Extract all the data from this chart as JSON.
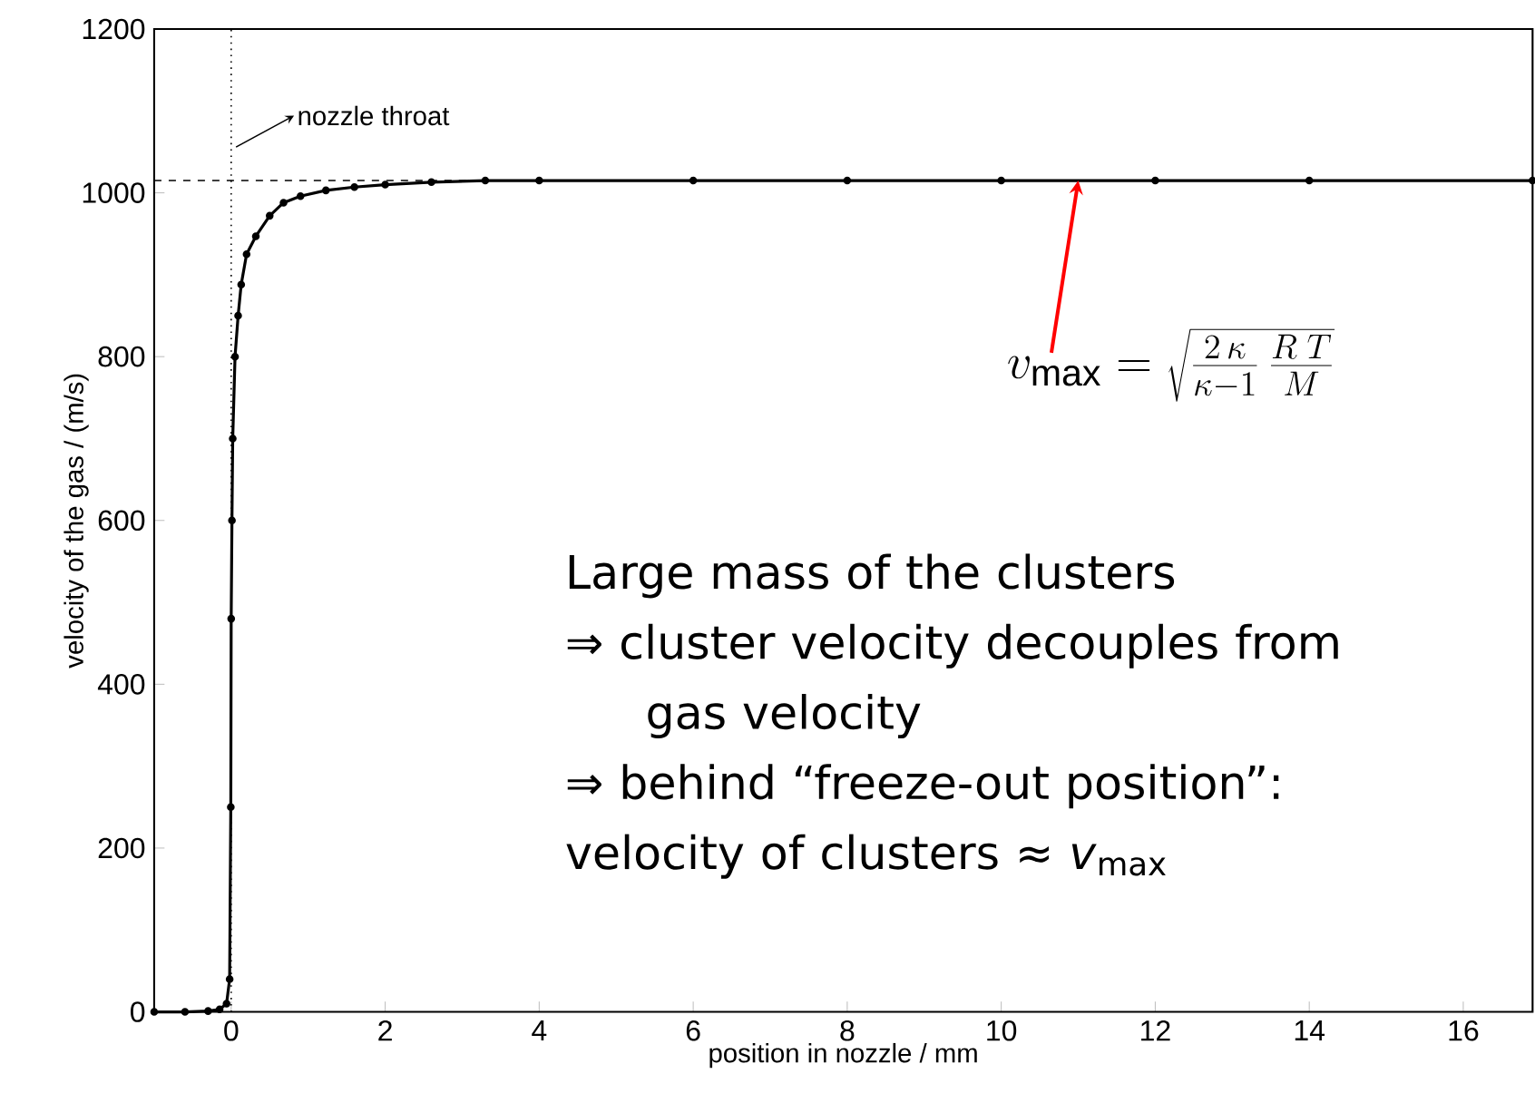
{
  "chart_data": {
    "type": "line",
    "xlabel": "position in nozzle / mm",
    "ylabel": "velocity of the gas / (m/s)",
    "x": [
      -1,
      -0.6,
      -0.3,
      -0.15,
      -0.06,
      -0.02,
      -0.005,
      0,
      0.01,
      0.02,
      0.05,
      0.09,
      0.13,
      0.2,
      0.32,
      0.5,
      0.68,
      0.9,
      1.23,
      1.6,
      2,
      2.6,
      3.3,
      4,
      6,
      8,
      10,
      12,
      14,
      16.9
    ],
    "series": [
      {
        "color": "#000000",
        "values": [
          0,
          0,
          1,
          3,
          10,
          40,
          250,
          480,
          600,
          700,
          800,
          850,
          888,
          925,
          947,
          972,
          988,
          996,
          1003,
          1007,
          1010,
          1013,
          1015,
          1015,
          1015,
          1015,
          1015,
          1015,
          1015,
          1015
        ]
      }
    ],
    "marker": "circle",
    "line_style": "solid",
    "xlim": [
      -1,
      16.9
    ],
    "ylim": [
      0,
      1200
    ],
    "xticks": [
      0,
      2,
      4,
      6,
      8,
      10,
      12,
      14,
      16
    ],
    "yticks": [
      0,
      200,
      400,
      600,
      800,
      1000,
      1200
    ],
    "ref_lines": [
      {
        "axis": "x",
        "value": 0,
        "line_style": "dotted",
        "color": "#000000"
      },
      {
        "axis": "y",
        "value": 1015,
        "line_style": "dashed",
        "color": "#000000"
      }
    ],
    "annotations": [
      {
        "text": "nozzle throat",
        "x": 0,
        "y": 1050
      },
      {
        "text": "v_{\\mathrm{max}} = \\sqrt{\\frac{2\\,\\kappa}{\\kappa-1}\\,\\frac{R\\;T}{M}}",
        "x": 11,
        "y": 1015
      },
      "Large mass of the clusters",
      "⇒ cluster velocity decouples from gas velocity",
      "⇒ behind “freeze-out position”: velocity of clusters ≈ *v*$_{max}$"
    ]
  }
}
